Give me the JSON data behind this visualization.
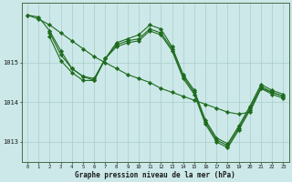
{
  "background_color": "#cce8e8",
  "grid_color": "#aacccc",
  "line_color": "#1e6b1e",
  "marker_color": "#1e6b1e",
  "ylabel_ticks": [
    1013,
    1014,
    1015
  ],
  "xticks": [
    0,
    1,
    2,
    3,
    4,
    5,
    6,
    7,
    8,
    9,
    10,
    11,
    12,
    13,
    14,
    15,
    16,
    17,
    18,
    19,
    20,
    21,
    22,
    23
  ],
  "xlabel": "Graphe pression niveau de la mer (hPa)",
  "xlim": [
    -0.5,
    23.5
  ],
  "ylim": [
    1012.5,
    1016.5
  ],
  "lines": [
    {
      "x": [
        0,
        1,
        2,
        3,
        4,
        5,
        6,
        7,
        8,
        9,
        10,
        11,
        12,
        13,
        14,
        15,
        16,
        17,
        18,
        19,
        20,
        21,
        22,
        23
      ],
      "y": [
        1016.2,
        1016.15,
        1015.8,
        1015.3,
        1014.85,
        1014.65,
        1014.55,
        1015.1,
        1015.5,
        1015.6,
        1015.7,
        1015.95,
        1015.85,
        1015.4,
        1014.7,
        1014.3,
        1013.55,
        1013.1,
        1012.95,
        1013.4,
        1013.9,
        1014.45,
        1014.3,
        1014.2
      ]
    },
    {
      "x": [
        2,
        3,
        4,
        5,
        6,
        7,
        8,
        9,
        10,
        11,
        12,
        13,
        14,
        15,
        16,
        17,
        18,
        19,
        20,
        21,
        22,
        23
      ],
      "y": [
        1015.75,
        1015.2,
        1014.85,
        1014.65,
        1014.6,
        1015.1,
        1015.45,
        1015.55,
        1015.6,
        1015.85,
        1015.75,
        1015.35,
        1014.65,
        1014.25,
        1013.5,
        1013.05,
        1012.9,
        1013.35,
        1013.85,
        1014.4,
        1014.25,
        1014.15
      ]
    },
    {
      "x": [
        2,
        3,
        4,
        5,
        6,
        7,
        8,
        9,
        10,
        11,
        12,
        13,
        14,
        15,
        16,
        17,
        18,
        19,
        20,
        21,
        22,
        23
      ],
      "y": [
        1015.65,
        1015.05,
        1014.75,
        1014.55,
        1014.55,
        1015.1,
        1015.4,
        1015.5,
        1015.55,
        1015.8,
        1015.7,
        1015.3,
        1014.6,
        1014.2,
        1013.45,
        1013.0,
        1012.85,
        1013.3,
        1013.8,
        1014.35,
        1014.2,
        1014.1
      ]
    },
    {
      "x": [
        0,
        1,
        2,
        3,
        4,
        5,
        6,
        7,
        8,
        9,
        10,
        11,
        12,
        13,
        14,
        15,
        16,
        17,
        18,
        19,
        20,
        21,
        22,
        23
      ],
      "y": [
        1016.2,
        1016.1,
        1015.95,
        1015.75,
        1015.55,
        1015.35,
        1015.15,
        1015.0,
        1014.85,
        1014.7,
        1014.6,
        1014.5,
        1014.35,
        1014.25,
        1014.15,
        1014.05,
        1013.95,
        1013.85,
        1013.75,
        1013.7,
        1013.75,
        1014.35,
        1014.25,
        1014.15
      ]
    }
  ]
}
